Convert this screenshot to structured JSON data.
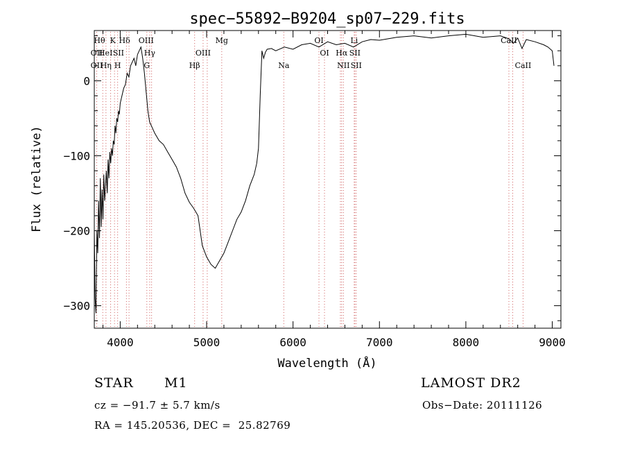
{
  "chart_data": {
    "type": "line",
    "title": "spec−55892−B9204_sp07−229.fits",
    "xlabel": "Wavelength (Å)",
    "ylabel": "Flux (relative)",
    "xlim": [
      3700,
      9100
    ],
    "ylim": [
      -330,
      67
    ],
    "xticks": [
      4000,
      5000,
      6000,
      7000,
      8000,
      9000
    ],
    "yticks": [
      0,
      -100,
      -200,
      -300
    ],
    "grid": false,
    "series": [
      {
        "x": [
          3700,
          3710,
          3720,
          3730,
          3740,
          3750,
          3760,
          3770,
          3780,
          3790,
          3800,
          3810,
          3820,
          3830,
          3840,
          3850,
          3860,
          3870,
          3880,
          3890,
          3900,
          3910,
          3920,
          3930,
          3940,
          3950,
          3960,
          3970,
          3980,
          3990,
          4000,
          4020,
          4040,
          4060,
          4080,
          4100,
          4120,
          4140,
          4160,
          4180,
          4200,
          4220,
          4240,
          4260,
          4280,
          4300,
          4320,
          4340,
          4360,
          4380,
          4400,
          4450,
          4500,
          4550,
          4600,
          4650,
          4700,
          4750,
          4800,
          4850,
          4900,
          4950,
          5000,
          5050,
          5100,
          5150,
          5200,
          5250,
          5300,
          5350,
          5400,
          5450,
          5500,
          5550,
          5580,
          5600,
          5620,
          5640,
          5660,
          5680,
          5700,
          5750,
          5800,
          5900,
          6000,
          6100,
          6200,
          6300,
          6400,
          6500,
          6600,
          6700,
          6800,
          6900,
          7000,
          7200,
          7400,
          7600,
          7800,
          8000,
          8200,
          8400,
          8500,
          8550,
          8600,
          8650,
          8700,
          8800,
          8900,
          8950,
          9000,
          9020
        ],
        "y": [
          -200,
          -290,
          -310,
          -200,
          -230,
          -160,
          -210,
          -130,
          -195,
          -145,
          -185,
          -125,
          -160,
          -140,
          -120,
          -150,
          -105,
          -130,
          -95,
          -110,
          -90,
          -100,
          -80,
          -85,
          -60,
          -70,
          -50,
          -55,
          -40,
          -45,
          -30,
          -20,
          -10,
          -5,
          10,
          5,
          20,
          25,
          30,
          20,
          35,
          40,
          45,
          30,
          10,
          -15,
          -40,
          -55,
          -60,
          -65,
          -70,
          -80,
          -85,
          -95,
          -105,
          -115,
          -130,
          -150,
          -162,
          -170,
          -180,
          -220,
          -235,
          -245,
          -250,
          -240,
          -230,
          -215,
          -200,
          -185,
          -175,
          -160,
          -140,
          -125,
          -110,
          -90,
          -20,
          40,
          30,
          38,
          42,
          43,
          40,
          45,
          42,
          48,
          50,
          45,
          52,
          48,
          50,
          45,
          52,
          55,
          54,
          58,
          60,
          57,
          60,
          62,
          58,
          60,
          56,
          50,
          57,
          43,
          55,
          52,
          48,
          45,
          40,
          20
        ],
        "color": "#000000"
      }
    ],
    "annotations": {
      "line_color": "#d06060",
      "lines": [
        3728,
        3798,
        3835,
        3889,
        3934,
        3970,
        4072,
        4102,
        4308,
        4341,
        4363,
        4861,
        4959,
        5007,
        5175,
        5893,
        6300,
        6364,
        6548,
        6563,
        6583,
        6708,
        6716,
        6731,
        8498,
        8542,
        8662
      ],
      "labels": [
        {
          "text": "Hθ",
          "x": 3760,
          "row": 1
        },
        {
          "text": "K",
          "x": 3915,
          "row": 1
        },
        {
          "text": "Hδ",
          "x": 4050,
          "row": 1
        },
        {
          "text": "OIII",
          "x": 4300,
          "row": 1
        },
        {
          "text": "Mg",
          "x": 5175,
          "row": 1
        },
        {
          "text": "OI",
          "x": 6300,
          "row": 1
        },
        {
          "text": "Li",
          "x": 6708,
          "row": 1
        },
        {
          "text": "CaII",
          "x": 8498,
          "row": 1
        },
        {
          "text": "OII",
          "x": 3728,
          "row": 2
        },
        {
          "text": "HeI",
          "x": 3830,
          "row": 2
        },
        {
          "text": "SII",
          "x": 3980,
          "row": 2
        },
        {
          "text": "Hγ",
          "x": 4341,
          "row": 2
        },
        {
          "text": "OIII",
          "x": 4959,
          "row": 2
        },
        {
          "text": "OI",
          "x": 6364,
          "row": 2
        },
        {
          "text": "Hα",
          "x": 6563,
          "row": 2
        },
        {
          "text": "SII",
          "x": 6716,
          "row": 2
        },
        {
          "text": "OII",
          "x": 3728,
          "row": 3
        },
        {
          "text": "Hη",
          "x": 3835,
          "row": 3
        },
        {
          "text": "H",
          "x": 3970,
          "row": 3
        },
        {
          "text": "G",
          "x": 4308,
          "row": 3
        },
        {
          "text": "Hβ",
          "x": 4861,
          "row": 3
        },
        {
          "text": "Na",
          "x": 5893,
          "row": 3
        },
        {
          "text": "NII",
          "x": 6583,
          "row": 3
        },
        {
          "text": "SII",
          "x": 6731,
          "row": 3
        },
        {
          "text": "CaII",
          "x": 8662,
          "row": 3
        }
      ]
    }
  },
  "info": {
    "object_class": "STAR",
    "subclass": "M1",
    "survey": "LAMOST DR2",
    "cz": "cz = −91.7 ± 5.7 km/s",
    "obs_date": "Obs−Date: 20111126",
    "radec": "RA = 145.20536, DEC =  25.82769"
  }
}
